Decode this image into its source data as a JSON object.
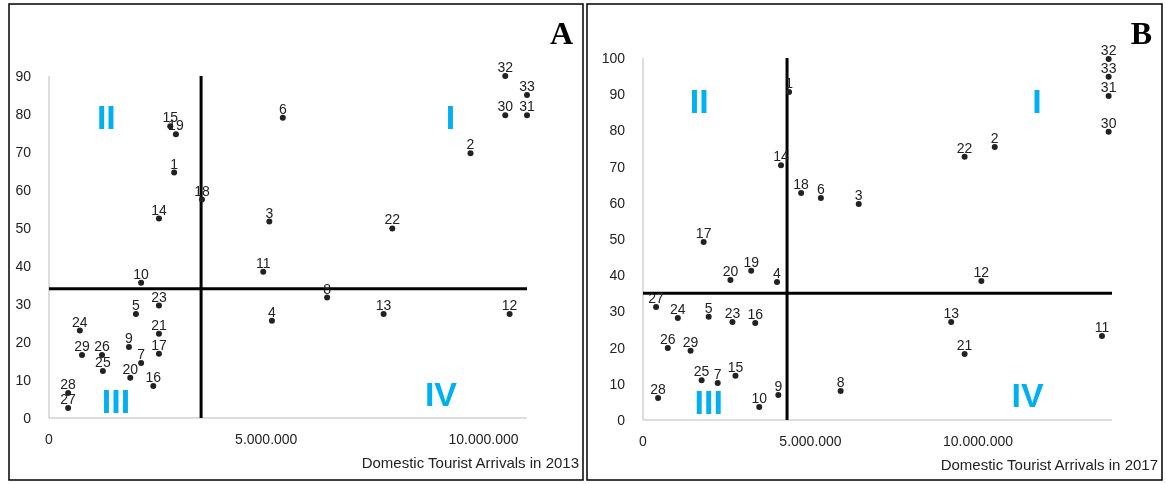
{
  "chart_data": [
    {
      "type": "scatter",
      "xlabel": "Domestic Tourist Arrivals in 2013",
      "marker": "circle",
      "color": "#222222",
      "xlim": [
        0,
        11000000
      ],
      "xticks": [
        {
          "value": 0,
          "label": "0"
        },
        {
          "value": 5000000,
          "label": "5.000.000"
        },
        {
          "value": 10000000,
          "label": "10.000.000"
        }
      ],
      "ylim": [
        0,
        90
      ],
      "yticks": [
        0,
        10,
        20,
        30,
        40,
        50,
        60,
        70,
        80,
        90
      ],
      "series": [
        {
          "name": "1",
          "x": [
            2880000
          ],
          "values": [
            64.6
          ]
        },
        {
          "name": "2",
          "x": [
            9700000
          ],
          "values": [
            69.7
          ]
        },
        {
          "name": "3",
          "x": [
            5070000
          ],
          "values": [
            51.7
          ]
        },
        {
          "name": "4",
          "x": [
            5130000
          ],
          "values": [
            25.6
          ]
        },
        {
          "name": "5",
          "x": [
            2000000
          ],
          "values": [
            27.4
          ]
        },
        {
          "name": "6",
          "x": [
            5380000
          ],
          "values": [
            79
          ]
        },
        {
          "name": "7",
          "x": [
            2120000
          ],
          "values": [
            14.5
          ]
        },
        {
          "name": "8",
          "x": [
            6400000
          ],
          "values": [
            31.7
          ]
        },
        {
          "name": "9",
          "x": [
            1840000
          ],
          "values": [
            18.7
          ]
        },
        {
          "name": "10",
          "x": [
            2120000
          ],
          "values": [
            35.6
          ]
        },
        {
          "name": "11",
          "x": [
            4930000
          ],
          "values": [
            38.5
          ]
        },
        {
          "name": "12",
          "x": [
            10600000
          ],
          "values": [
            27.4
          ]
        },
        {
          "name": "13",
          "x": [
            7700000
          ],
          "values": [
            27.4
          ]
        },
        {
          "name": "14",
          "x": [
            2530000
          ],
          "values": [
            52.5
          ]
        },
        {
          "name": "15",
          "x": [
            2790000
          ],
          "values": [
            76.8
          ]
        },
        {
          "name": "16",
          "x": [
            2400000
          ],
          "values": [
            8.4
          ]
        },
        {
          "name": "17",
          "x": [
            2530000
          ],
          "values": [
            16.9
          ]
        },
        {
          "name": "18",
          "x": [
            3520000
          ],
          "values": [
            57.5
          ]
        },
        {
          "name": "19",
          "x": [
            2920000
          ],
          "values": [
            74.7
          ]
        },
        {
          "name": "20",
          "x": [
            1870000
          ],
          "values": [
            10.6
          ]
        },
        {
          "name": "21",
          "x": [
            2530000
          ],
          "values": [
            22.2
          ]
        },
        {
          "name": "22",
          "x": [
            7900000
          ],
          "values": [
            49.9
          ]
        },
        {
          "name": "23",
          "x": [
            2530000
          ],
          "values": [
            29.6
          ]
        },
        {
          "name": "24",
          "x": [
            710000
          ],
          "values": [
            23
          ]
        },
        {
          "name": "25",
          "x": [
            1240000
          ],
          "values": [
            12.4
          ]
        },
        {
          "name": "26",
          "x": [
            1220000
          ],
          "values": [
            16.6
          ]
        },
        {
          "name": "27",
          "x": [
            440000
          ],
          "values": [
            2.6
          ]
        },
        {
          "name": "28",
          "x": [
            440000
          ],
          "values": [
            6.6
          ]
        },
        {
          "name": "29",
          "x": [
            760000
          ],
          "values": [
            16.6
          ]
        },
        {
          "name": "30",
          "x": [
            10500000
          ],
          "values": [
            79.7
          ]
        },
        {
          "name": "31",
          "x": [
            11000000
          ],
          "values": [
            79.7
          ]
        },
        {
          "name": "32",
          "x": [
            10500000
          ],
          "values": [
            90
          ]
        },
        {
          "name": "33",
          "x": [
            11000000
          ],
          "values": [
            85
          ]
        }
      ],
      "ref_lines": [
        {
          "axis": "x",
          "value": 3500000
        },
        {
          "axis": "y",
          "value": 34
        }
      ],
      "annotations": [
        "I",
        "II",
        "III",
        "IV",
        "A"
      ]
    },
    {
      "type": "scatter",
      "xlabel": "Domestic Tourist Arrivals in 2017",
      "marker": "circle",
      "color": "#222222",
      "xlim": [
        0,
        14000000
      ],
      "xticks": [
        {
          "value": 0,
          "label": "0"
        },
        {
          "value": 5000000,
          "label": "5.000.000"
        },
        {
          "value": 10000000,
          "label": "10.000.000"
        }
      ],
      "ylim": [
        0,
        100
      ],
      "yticks": [
        0,
        10,
        20,
        30,
        40,
        50,
        60,
        70,
        80,
        90,
        100
      ],
      "series": [
        {
          "name": "1",
          "x": [
            4360000
          ],
          "values": [
            90.6
          ]
        },
        {
          "name": "2",
          "x": [
            10500000
          ],
          "values": [
            75.4
          ]
        },
        {
          "name": "3",
          "x": [
            6440000
          ],
          "values": [
            59.7
          ]
        },
        {
          "name": "4",
          "x": [
            4000000
          ],
          "values": [
            38.1
          ]
        },
        {
          "name": "5",
          "x": [
            1960000
          ],
          "values": [
            28.5
          ]
        },
        {
          "name": "6",
          "x": [
            5310000
          ],
          "values": [
            61.3
          ]
        },
        {
          "name": "7",
          "x": [
            2230000
          ],
          "values": [
            10.2
          ]
        },
        {
          "name": "8",
          "x": [
            5900000
          ],
          "values": [
            8
          ]
        },
        {
          "name": "9",
          "x": [
            4040000
          ],
          "values": [
            6.9
          ]
        },
        {
          "name": "10",
          "x": [
            3470000
          ],
          "values": [
            3.6
          ]
        },
        {
          "name": "11",
          "x": [
            13700000
          ],
          "values": [
            23.2
          ]
        },
        {
          "name": "12",
          "x": [
            10100000
          ],
          "values": [
            38.4
          ]
        },
        {
          "name": "13",
          "x": [
            9200000
          ],
          "values": [
            27.1
          ]
        },
        {
          "name": "14",
          "x": [
            4120000
          ],
          "values": [
            70.4
          ]
        },
        {
          "name": "15",
          "x": [
            2760000
          ],
          "values": [
            12.2
          ]
        },
        {
          "name": "16",
          "x": [
            3350000
          ],
          "values": [
            26.8
          ]
        },
        {
          "name": "17",
          "x": [
            1810000
          ],
          "values": [
            49.2
          ]
        },
        {
          "name": "18",
          "x": [
            4720000
          ],
          "values": [
            62.7
          ]
        },
        {
          "name": "19",
          "x": [
            3230000
          ],
          "values": [
            41.2
          ]
        },
        {
          "name": "20",
          "x": [
            2610000
          ],
          "values": [
            38.7
          ]
        },
        {
          "name": "21",
          "x": [
            9600000
          ],
          "values": [
            18.2
          ]
        },
        {
          "name": "22",
          "x": [
            9600000
          ],
          "values": [
            72.7
          ]
        },
        {
          "name": "23",
          "x": [
            2670000
          ],
          "values": [
            27.1
          ]
        },
        {
          "name": "24",
          "x": [
            1040000
          ],
          "values": [
            28.2
          ]
        },
        {
          "name": "25",
          "x": [
            1750000
          ],
          "values": [
            11
          ]
        },
        {
          "name": "26",
          "x": [
            740000
          ],
          "values": [
            19.9
          ]
        },
        {
          "name": "27",
          "x": [
            390000
          ],
          "values": [
            31.2
          ]
        },
        {
          "name": "28",
          "x": [
            450000
          ],
          "values": [
            6.1
          ]
        },
        {
          "name": "29",
          "x": [
            1420000
          ],
          "values": [
            19.1
          ]
        },
        {
          "name": "30",
          "x": [
            13900000
          ],
          "values": [
            79.6
          ]
        },
        {
          "name": "31",
          "x": [
            13900000
          ],
          "values": [
            89.5
          ]
        },
        {
          "name": "32",
          "x": [
            13900000
          ],
          "values": [
            99.7
          ]
        },
        {
          "name": "33",
          "x": [
            13900000
          ],
          "values": [
            94.8
          ]
        }
      ],
      "ref_lines": [
        {
          "axis": "x",
          "value": 4300000
        },
        {
          "axis": "y",
          "value": 35
        }
      ],
      "annotations": [
        "I",
        "II",
        "III",
        "IV",
        "B"
      ]
    }
  ]
}
